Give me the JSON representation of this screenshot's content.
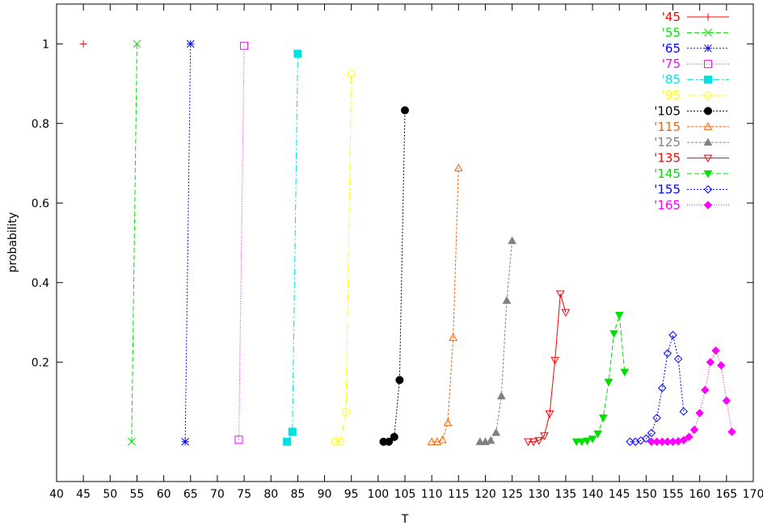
{
  "chart_data": {
    "type": "line",
    "title": "",
    "xlabel": "T",
    "ylabel": "probability",
    "xlim": [
      40,
      170
    ],
    "ylim": [
      -0.1,
      1.1
    ],
    "xticks": [
      40,
      45,
      50,
      55,
      60,
      65,
      70,
      75,
      80,
      85,
      90,
      95,
      100,
      105,
      110,
      115,
      120,
      125,
      130,
      135,
      140,
      145,
      150,
      155,
      160,
      165,
      170
    ],
    "yticks": [
      0.2,
      0.4,
      0.6,
      0.8,
      1
    ],
    "legend_position": "top-right",
    "series": [
      {
        "name": "'45",
        "color": "#ff0000",
        "marker": "plus",
        "dash": "",
        "points": [
          [
            45,
            1.0
          ]
        ]
      },
      {
        "name": "'55",
        "color": "#00e000",
        "marker": "x",
        "dash": "6,3",
        "points": [
          [
            54,
            0.0
          ],
          [
            55,
            1.0
          ]
        ]
      },
      {
        "name": "'65",
        "color": "#0000ff",
        "marker": "star",
        "dash": "2,2",
        "points": [
          [
            64,
            0.0
          ],
          [
            65,
            1.0
          ]
        ]
      },
      {
        "name": "'75",
        "color": "#ff00ff",
        "marker": "square-open",
        "dash": "1,2",
        "points": [
          [
            74,
            0.005
          ],
          [
            75,
            0.995
          ]
        ]
      },
      {
        "name": "'85",
        "color": "#00e0e0",
        "marker": "square-filled",
        "dash": "8,3,2,3",
        "points": [
          [
            83,
            0.0
          ],
          [
            84,
            0.025
          ],
          [
            85,
            0.975
          ]
        ]
      },
      {
        "name": "'95",
        "color": "#ffff00",
        "marker": "circle-open",
        "dash": "10,3,2,3",
        "points": [
          [
            92,
            0.0
          ],
          [
            93,
            0.0
          ],
          [
            94,
            0.075
          ],
          [
            95,
            0.925
          ]
        ]
      },
      {
        "name": "'105",
        "color": "#000000",
        "marker": "circle-filled",
        "dash": "2,2",
        "points": [
          [
            101,
            0.0
          ],
          [
            102,
            0.0
          ],
          [
            103,
            0.012
          ],
          [
            104,
            0.155
          ],
          [
            105,
            0.833
          ]
        ]
      },
      {
        "name": "'115",
        "color": "#ff6000",
        "marker": "triangle-open",
        "dash": "3,2",
        "points": [
          [
            110,
            0.0
          ],
          [
            111,
            0.0
          ],
          [
            112,
            0.005
          ],
          [
            113,
            0.048
          ],
          [
            114,
            0.262
          ],
          [
            115,
            0.688
          ]
        ]
      },
      {
        "name": "'125",
        "color": "#808080",
        "marker": "triangle-filled",
        "dash": "3,2",
        "points": [
          [
            119,
            0.0
          ],
          [
            120,
            0.0
          ],
          [
            121,
            0.003
          ],
          [
            122,
            0.023
          ],
          [
            123,
            0.115
          ],
          [
            124,
            0.355
          ],
          [
            125,
            0.505
          ]
        ]
      },
      {
        "name": "'135",
        "color": "#ff0000",
        "marker": "triangle-down-open",
        "dash": "",
        "points": [
          [
            128,
            0.0
          ],
          [
            129,
            0.0
          ],
          [
            130,
            0.003
          ],
          [
            131,
            0.015
          ],
          [
            132,
            0.07
          ],
          [
            133,
            0.205
          ],
          [
            134,
            0.372
          ],
          [
            135,
            0.325
          ]
        ]
      },
      {
        "name": "'145",
        "color": "#00e000",
        "marker": "triangle-down-filled",
        "dash": "6,3",
        "points": [
          [
            137,
            0.0
          ],
          [
            138,
            0.0
          ],
          [
            139,
            0.002
          ],
          [
            140,
            0.007
          ],
          [
            141,
            0.02
          ],
          [
            142,
            0.06
          ],
          [
            143,
            0.15
          ],
          [
            144,
            0.272
          ],
          [
            145,
            0.318
          ],
          [
            146,
            0.175
          ]
        ]
      },
      {
        "name": "'155",
        "color": "#0000ff",
        "marker": "diamond-open",
        "dash": "2,2",
        "points": [
          [
            147,
            0.0
          ],
          [
            148,
            0.0
          ],
          [
            149,
            0.003
          ],
          [
            150,
            0.008
          ],
          [
            151,
            0.022
          ],
          [
            152,
            0.06
          ],
          [
            153,
            0.135
          ],
          [
            154,
            0.222
          ],
          [
            155,
            0.268
          ],
          [
            156,
            0.208
          ],
          [
            157,
            0.076
          ]
        ]
      },
      {
        "name": "'165",
        "color": "#ff00ff",
        "marker": "diamond-filled",
        "dash": "1,2",
        "points": [
          [
            151,
            0.0
          ],
          [
            152,
            0.0
          ],
          [
            153,
            0.0
          ],
          [
            154,
            0.0
          ],
          [
            155,
            0.0
          ],
          [
            156,
            0.001
          ],
          [
            157,
            0.004
          ],
          [
            158,
            0.012
          ],
          [
            159,
            0.03
          ],
          [
            160,
            0.072
          ],
          [
            161,
            0.13
          ],
          [
            162,
            0.2
          ],
          [
            163,
            0.229
          ],
          [
            164,
            0.192
          ],
          [
            165,
            0.103
          ],
          [
            166,
            0.025
          ]
        ]
      }
    ]
  }
}
